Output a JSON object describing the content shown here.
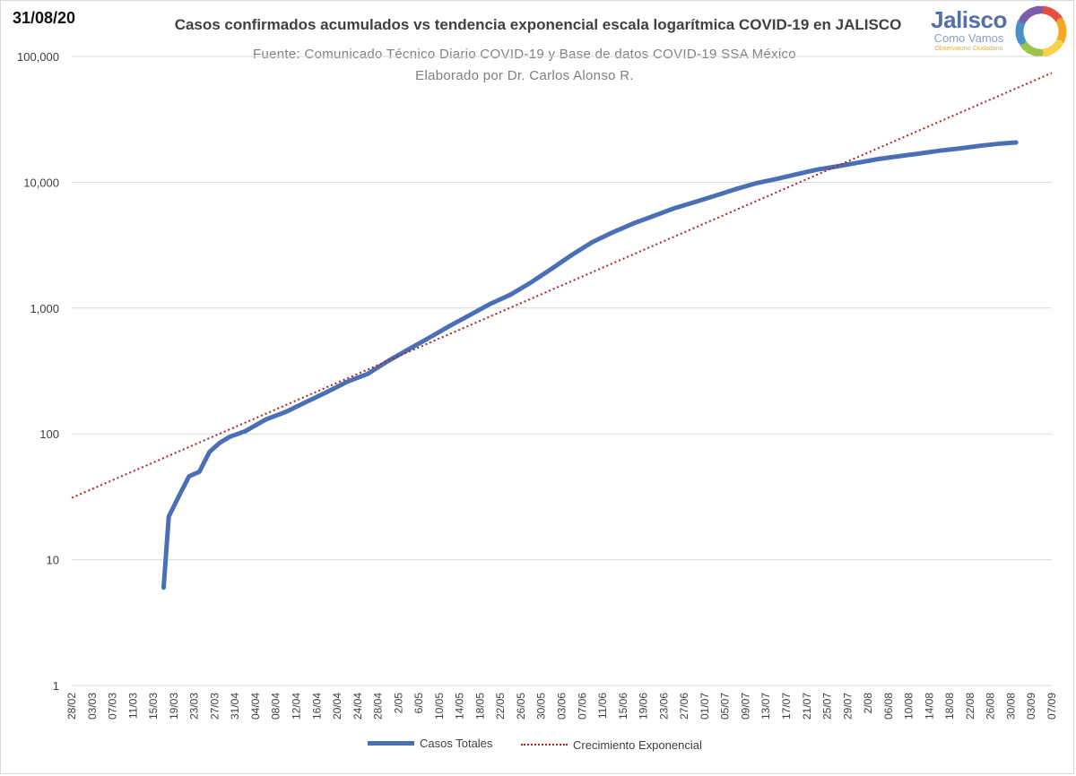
{
  "header": {
    "date": "31/08/20",
    "title": "Casos confirmados acumulados vs tendencia exponencial escala logarítmica COVID-19 en JALISCO",
    "source": "Fuente: Comunicado Técnico Diario COVID-19 y Base de datos COVID-19 SSA México",
    "author": "Elaborado por Dr. Carlos Alonso R."
  },
  "logo": {
    "name": "Jalisco",
    "sub": "Como Vamos",
    "tag": "Observatorio Ciudadano",
    "colors": [
      "#e94e3c",
      "#f5a623",
      "#f8d34a",
      "#9dc34a",
      "#4a90c8",
      "#7a5fa8"
    ]
  },
  "chart_data": {
    "type": "line",
    "y_scale": "log",
    "ylim": [
      1,
      100000
    ],
    "y_ticks": [
      "1",
      "10",
      "100",
      "1,000",
      "10,000",
      "100,000"
    ],
    "y_tick_values": [
      1,
      10,
      100,
      1000,
      10000,
      100000
    ],
    "x_tick_labels": [
      "28/02",
      "03/03",
      "07/03",
      "11/03",
      "15/03",
      "19/03",
      "23/03",
      "27/03",
      "31/04",
      "04/04",
      "08/04",
      "12/04",
      "16/04",
      "20/04",
      "24/04",
      "28/04",
      "2/05",
      "6/05",
      "10/05",
      "14/05",
      "18/05",
      "22/05",
      "26/05",
      "30/05",
      "03/06",
      "07/06",
      "11/06",
      "15/06",
      "19/06",
      "23/06",
      "27/06",
      "01/07",
      "05/07",
      "09/07",
      "13/07",
      "17/07",
      "21/07",
      "25/07",
      "29/07",
      "2/08",
      "06/08",
      "10/08",
      "14/08",
      "18/08",
      "22/08",
      "26/08",
      "30/08",
      "03/09",
      "07/09"
    ],
    "x_start": "2020-02-28",
    "x_end": "2020-09-07",
    "grid": true,
    "legend_position": "bottom",
    "series": [
      {
        "name": "Casos Totales",
        "color": "#4a6fb5",
        "style": "solid",
        "x": [
          "2020-03-17",
          "2020-03-18",
          "2020-03-20",
          "2020-03-22",
          "2020-03-24",
          "2020-03-26",
          "2020-03-28",
          "2020-03-30",
          "2020-04-02",
          "2020-04-06",
          "2020-04-10",
          "2020-04-14",
          "2020-04-18",
          "2020-04-22",
          "2020-04-26",
          "2020-04-30",
          "2020-05-04",
          "2020-05-08",
          "2020-05-12",
          "2020-05-16",
          "2020-05-20",
          "2020-05-24",
          "2020-05-28",
          "2020-06-01",
          "2020-06-05",
          "2020-06-09",
          "2020-06-13",
          "2020-06-17",
          "2020-06-21",
          "2020-06-25",
          "2020-06-29",
          "2020-07-03",
          "2020-07-07",
          "2020-07-11",
          "2020-07-15",
          "2020-07-19",
          "2020-07-23",
          "2020-07-27",
          "2020-07-31",
          "2020-08-04",
          "2020-08-08",
          "2020-08-12",
          "2020-08-16",
          "2020-08-20",
          "2020-08-24",
          "2020-08-28",
          "2020-08-31"
        ],
        "y": [
          6,
          22,
          32,
          46,
          50,
          72,
          85,
          95,
          105,
          130,
          150,
          180,
          215,
          260,
          300,
          380,
          470,
          580,
          720,
          880,
          1080,
          1280,
          1600,
          2050,
          2650,
          3350,
          4000,
          4700,
          5400,
          6200,
          6950,
          7800,
          8800,
          9800,
          10600,
          11600,
          12600,
          13400,
          14300,
          15300,
          16100,
          16900,
          17800,
          18600,
          19500,
          20300,
          20700
        ]
      },
      {
        "name": "Crecimiento Exponencial",
        "color": "#b22222",
        "style": "dotted",
        "x": [
          "2020-02-28",
          "2020-09-07"
        ],
        "y": [
          31,
          74000
        ]
      }
    ]
  }
}
